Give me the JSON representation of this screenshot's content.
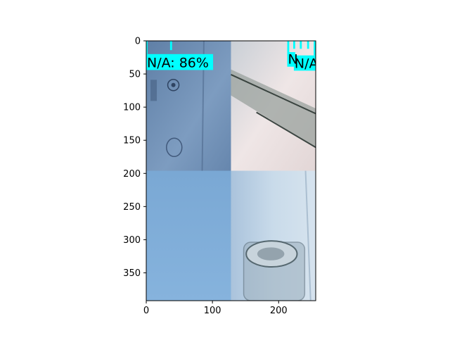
{
  "chart_data": {
    "type": "image",
    "xlim": [
      0,
      256
    ],
    "ylim": [
      392,
      0
    ],
    "xticks": [
      {
        "value": 0,
        "label": "0"
      },
      {
        "value": 100,
        "label": "100"
      },
      {
        "value": 200,
        "label": "200"
      }
    ],
    "yticks": [
      {
        "value": 0,
        "label": "0"
      },
      {
        "value": 50,
        "label": "50"
      },
      {
        "value": 100,
        "label": "100"
      },
      {
        "value": 150,
        "label": "150"
      },
      {
        "value": 200,
        "label": "200"
      },
      {
        "value": 250,
        "label": "250"
      },
      {
        "value": 300,
        "label": "300"
      },
      {
        "value": 350,
        "label": "350"
      }
    ],
    "tiles": [
      {
        "name": "cardboard",
        "x0": 0,
        "x1": 128,
        "y0": 0,
        "y1": 196,
        "color": "#6f8fb3"
      },
      {
        "name": "pale-surface",
        "x0": 128,
        "x1": 256,
        "y0": 0,
        "y1": 196,
        "color": "#e8dedf"
      },
      {
        "name": "blue-paper",
        "x0": 0,
        "x1": 128,
        "y0": 196,
        "y1": 392,
        "color": "#7ba9d6"
      },
      {
        "name": "glass-bottle",
        "x0": 128,
        "x1": 256,
        "y0": 196,
        "y1": 392,
        "color": "#b8cfe3"
      }
    ],
    "detections": [
      {
        "label": "N/A: 86%",
        "x": 0,
        "y": 20,
        "w": 101,
        "h": 24,
        "color": "#00ffff"
      },
      {
        "label": "N/A",
        "x": 223,
        "y": 22,
        "w": 33,
        "h": 23,
        "color": "#00ffff"
      },
      {
        "label": "N",
        "x": 213,
        "y": 17,
        "w": 12,
        "h": 22,
        "color": "#00ffff"
      }
    ],
    "box_marks": [
      {
        "x": 0,
        "y": 0,
        "w": 2,
        "h": 20
      },
      {
        "x": 36,
        "y": 0,
        "w": 3,
        "h": 14
      },
      {
        "x": 213,
        "y": 0,
        "w": 3,
        "h": 17
      },
      {
        "x": 222,
        "y": 0,
        "w": 3,
        "h": 12
      },
      {
        "x": 232,
        "y": 0,
        "w": 3,
        "h": 12
      },
      {
        "x": 243,
        "y": 0,
        "w": 3,
        "h": 12
      },
      {
        "x": 253,
        "y": 0,
        "w": 3,
        "h": 22
      }
    ]
  }
}
